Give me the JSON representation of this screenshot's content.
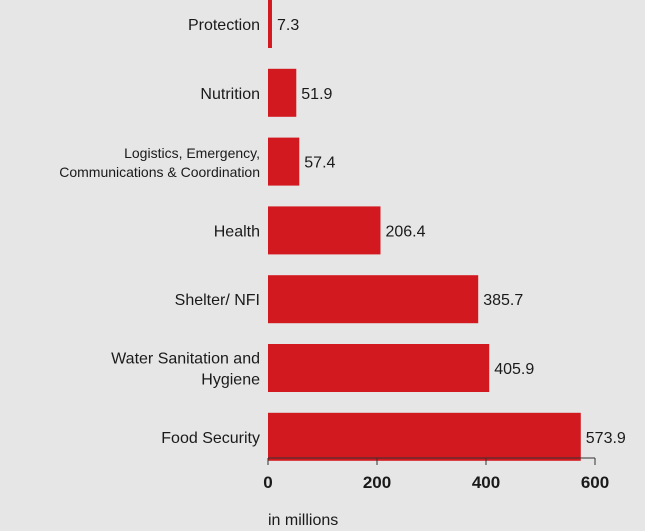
{
  "chart_data": {
    "type": "bar",
    "orientation": "horizontal",
    "categories": [
      "Protection",
      "Nutrition",
      "Logistics, Emergency,\nCommunications & Coordination",
      "Health",
      "Shelter/ NFI",
      "Water Sanitation and\nHygiene",
      "Food Security"
    ],
    "values": [
      7.3,
      51.9,
      57.4,
      206.4,
      385.7,
      405.9,
      573.9
    ],
    "value_labels": [
      "7.3",
      "51.9",
      "57.4",
      "206.4",
      "385.7",
      "405.9",
      "573.9"
    ],
    "x_ticks": [
      "0",
      "200",
      "400",
      "600"
    ],
    "x_tick_values": [
      0,
      200,
      400,
      600
    ],
    "xlabel": "in millions",
    "xlim": [
      0,
      600
    ],
    "grid": false,
    "legend": "none",
    "bar_color": "#d2191f",
    "background_color": "#e6e6e6"
  }
}
